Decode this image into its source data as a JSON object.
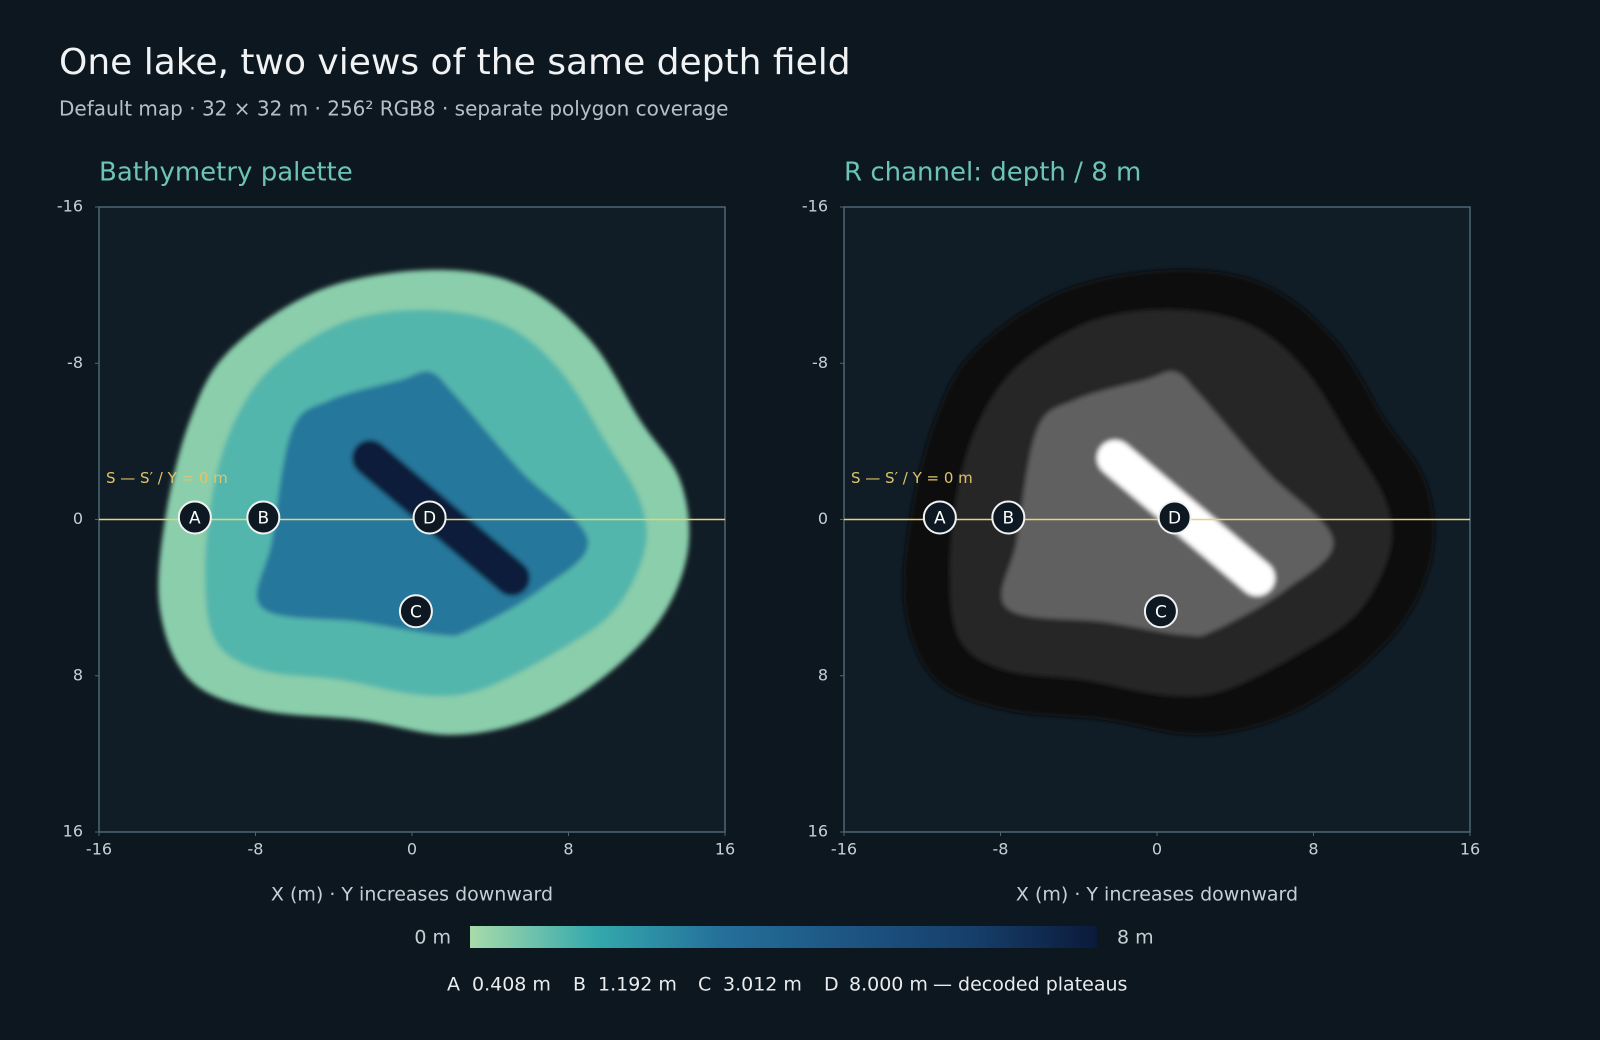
{
  "title": "One lake, two views of the same depth field",
  "subtitle": "Default map · 32 × 32 m · 256² RGB8 · separate polygon coverage",
  "chart_data": [
    {
      "type": "depthmap",
      "colormode": "palette",
      "title": "Bathymetry palette",
      "xlabel": "X (m) · Y increases downward",
      "xlim": [
        -16,
        16
      ],
      "ylim": [
        16,
        -16
      ],
      "xticks": [
        -16,
        -8,
        0,
        8,
        16
      ],
      "yticks": [
        -16,
        -8,
        0,
        8,
        16
      ],
      "section_label": "S — S′ / Y = 0 m",
      "section_y": 0
    },
    {
      "type": "depthmap",
      "colormode": "gray",
      "title": "R channel: depth / 8 m",
      "xlabel": "X (m) · Y increases downward",
      "xlim": [
        -16,
        16
      ],
      "ylim": [
        16,
        -16
      ],
      "xticks": [
        -16,
        -8,
        0,
        8,
        16
      ],
      "yticks": [
        -16,
        -8,
        0,
        8,
        16
      ],
      "section_label": "S — S′ / Y = 0 m",
      "section_y": 0
    }
  ],
  "markers": {
    "names": [
      "A",
      "B",
      "C",
      "D"
    ],
    "x": [
      -11.1,
      -7.6,
      0.2,
      0.9
    ],
    "y": [
      0,
      0,
      4.8,
      0
    ],
    "values": [
      0.408,
      1.192,
      3.012,
      8.0
    ],
    "value_labels": [
      "0.408 m",
      "1.192 m",
      "3.012 m",
      "8.000 m"
    ]
  },
  "legend_note": "— decoded plateaus",
  "colorbar": {
    "ticks": [
      {
        "value": 0,
        "label": "0 m"
      },
      {
        "value": 8,
        "label": "8 m"
      }
    ],
    "colors": [
      "#a8dbaa",
      "#34a9ad",
      "#24709a",
      "#1d5583",
      "#163f6b",
      "#0b1a3a"
    ]
  }
}
